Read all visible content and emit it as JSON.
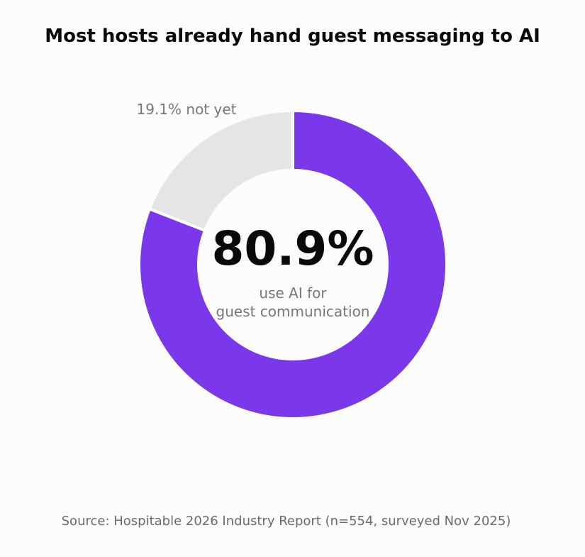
{
  "title": "Most hosts already hand guest messaging to AI",
  "source": "Source: Hospitable 2026 Industry Report (n=554, surveyed Nov 2025)",
  "colors": {
    "primary": "#7a38ea",
    "secondary": "#e6e5e6",
    "center_value": "#0a0a0a",
    "muted_text": "#777777"
  },
  "chart_data": {
    "type": "pie",
    "style": "donut",
    "slices": [
      {
        "value": 80.9,
        "color": "#7a38ea",
        "label": ""
      },
      {
        "value": 19.1,
        "color": "#e6e5e6",
        "label": "19.1% not yet"
      }
    ],
    "center_value": "80.9%",
    "center_caption_lines": [
      "use AI for",
      "guest communication"
    ]
  }
}
